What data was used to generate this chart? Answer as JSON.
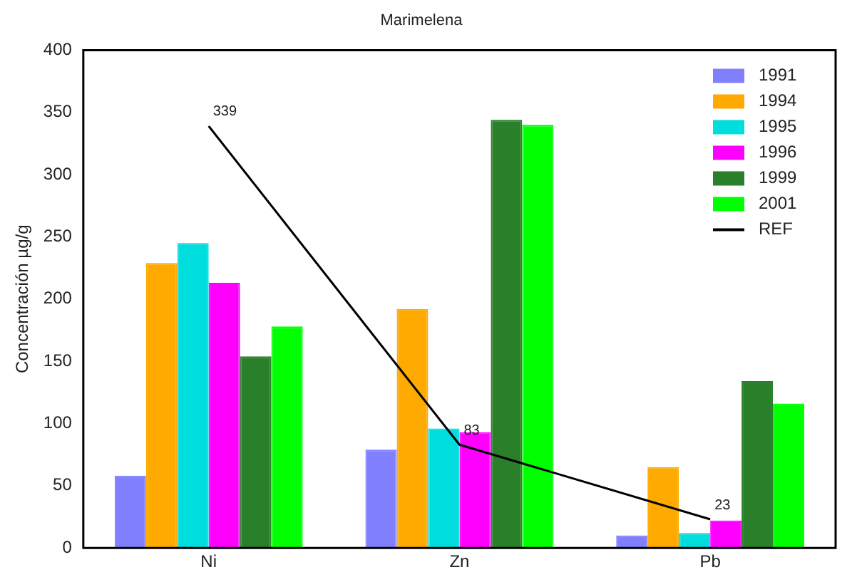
{
  "chart_data": {
    "type": "bar",
    "title": "Marimelena",
    "ylabel": "Concentración µg/g",
    "categories": [
      "Ni",
      "Zn",
      "Pb"
    ],
    "ylim": [
      0,
      400
    ],
    "yticks": [
      0,
      50,
      100,
      150,
      200,
      250,
      300,
      350,
      400
    ],
    "grid": false,
    "legend": "top right",
    "series": [
      {
        "name": "1991",
        "color": "#8080ff",
        "values": [
          58,
          79,
          10
        ]
      },
      {
        "name": "1994",
        "color": "#ffaa00",
        "values": [
          229,
          192,
          65
        ]
      },
      {
        "name": "1995",
        "color": "#00dddd",
        "values": [
          245,
          96,
          12
        ]
      },
      {
        "name": "1996",
        "color": "#ff00ff",
        "values": [
          213,
          93,
          22
        ]
      },
      {
        "name": "1999",
        "color": "#2a7f2a",
        "values": [
          154,
          344,
          134
        ]
      },
      {
        "name": "2001",
        "color": "#00ff00",
        "values": [
          178,
          340,
          116
        ]
      },
      {
        "name": "REF",
        "type": "line",
        "color": "#000000",
        "values": [
          339,
          83,
          23
        ],
        "value_labels": [
          "339",
          "83",
          "23"
        ]
      }
    ]
  }
}
